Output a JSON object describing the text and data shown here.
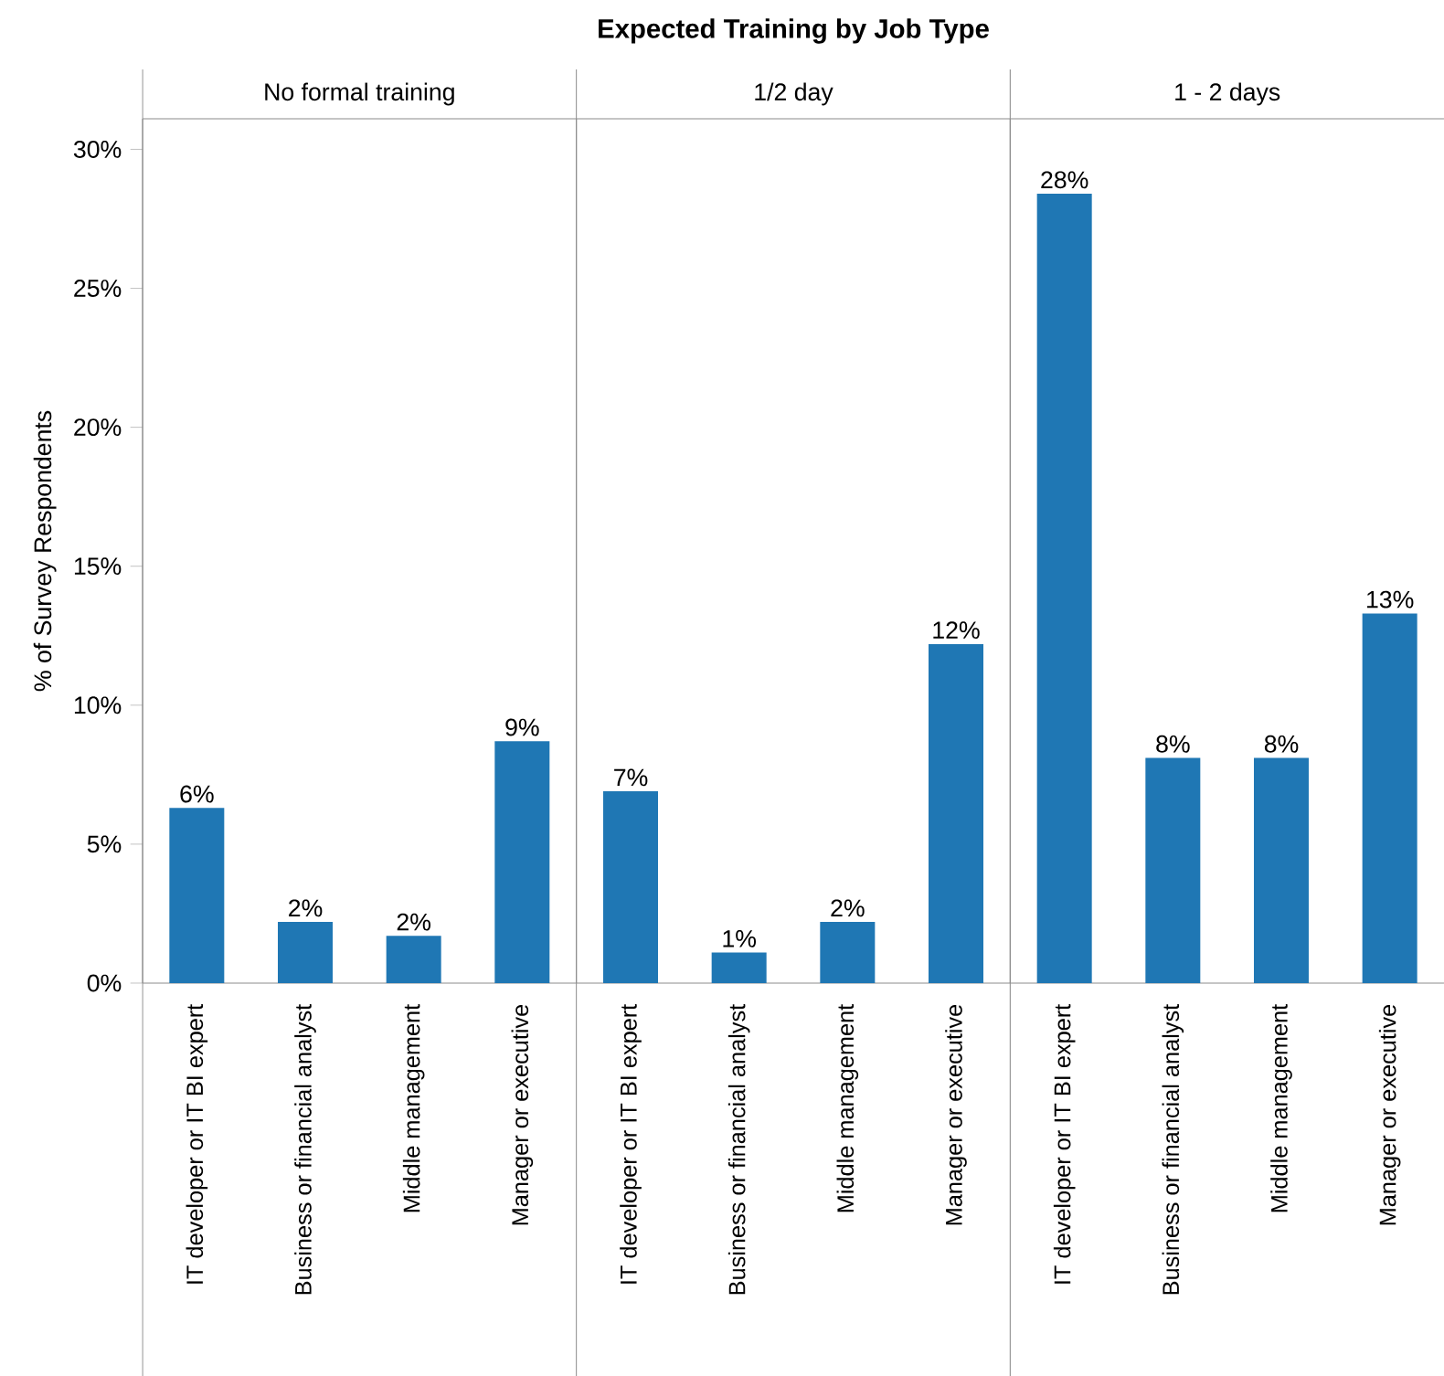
{
  "chart_data": [
    {
      "type": "bar",
      "subtitle": "No formal training",
      "ylabel": "% of Survey Respondents",
      "categories": [
        "IT developer or IT BI expert",
        "Business or financial analyst",
        "Middle management",
        "Manager or executive"
      ],
      "values": [
        6.3,
        2.2,
        1.7,
        8.7
      ],
      "value_labels": [
        "6%",
        "2%",
        "2%",
        "9%"
      ],
      "color": "#1f77b4",
      "ylim": [
        0,
        31.1
      ],
      "yticks": [
        {
          "value": 0,
          "label": "0%"
        },
        {
          "value": 5,
          "label": "5%"
        },
        {
          "value": 10,
          "label": "10%"
        },
        {
          "value": 15,
          "label": "15%"
        },
        {
          "value": 20,
          "label": "20%"
        },
        {
          "value": 25,
          "label": "25%"
        },
        {
          "value": 30,
          "label": "30%"
        }
      ]
    },
    {
      "type": "bar",
      "title": "Expected Training  by Job Type",
      "subtitle": "1/2 day",
      "categories": [
        "IT developer or IT BI expert",
        "Business or financial analyst",
        "Middle management",
        "Manager or executive"
      ],
      "values": [
        6.9,
        1.1,
        2.2,
        12.2
      ],
      "value_labels": [
        "7%",
        "1%",
        "2%",
        "12%"
      ],
      "color": "#1f77b4",
      "ylim": [
        0,
        31.1
      ],
      "tick_labels": "x"
    },
    {
      "type": "bar",
      "subtitle": "1 - 2 days",
      "categories": [
        "IT developer or IT BI expert",
        "Business or financial analyst",
        "Middle management",
        "Manager or executive"
      ],
      "values": [
        28.4,
        8.1,
        8.1,
        13.3
      ],
      "value_labels": [
        "28%",
        "8%",
        "8%",
        "13%"
      ],
      "color": "#1f77b4",
      "ylim": [
        0,
        31.1
      ],
      "tick_labels": "x"
    }
  ]
}
